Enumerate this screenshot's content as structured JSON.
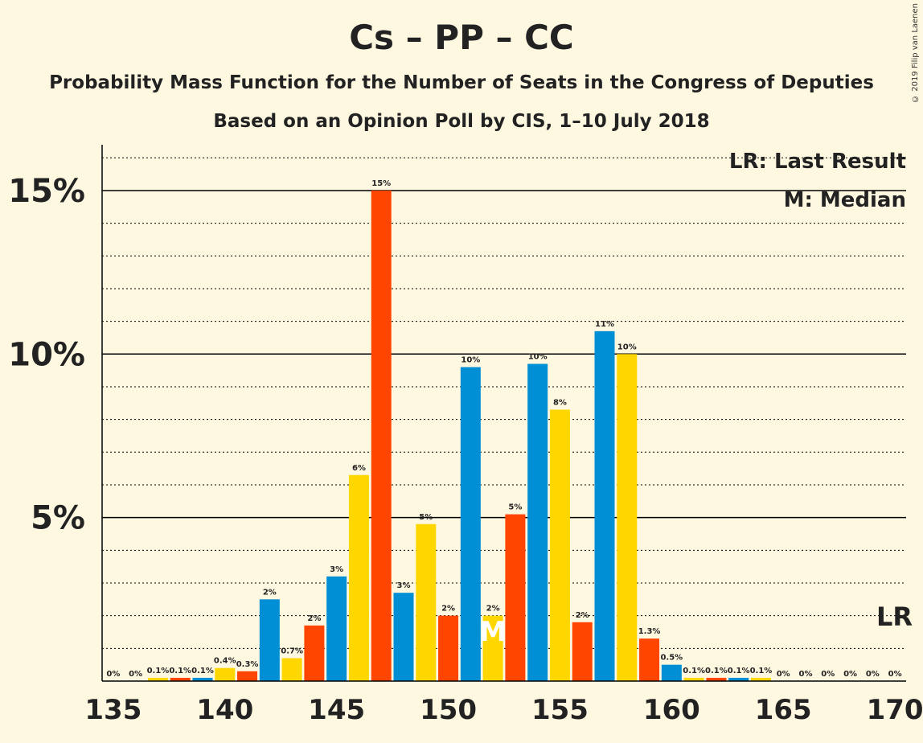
{
  "title": "Cs – PP – CC",
  "subtitle": "Probability Mass Function for the Number of Seats in the Congress of Deputies",
  "subtitle2": "Based on an Opinion Poll by CIS, 1–10 July 2018",
  "copyright": "© 2019 Filip van Laenen",
  "legend": {
    "last_result": "LR: Last Result",
    "median": "M: Median"
  },
  "colors": {
    "background": "#FFF8E1",
    "cs": "#008FD5",
    "pp": "#FFD700",
    "cc": "#FF4500"
  },
  "chart_data": {
    "type": "bar",
    "x": [
      135,
      136,
      137,
      138,
      139,
      140,
      141,
      142,
      143,
      144,
      145,
      146,
      147,
      148,
      149,
      150,
      151,
      152,
      153,
      154,
      155,
      156,
      157,
      158,
      159,
      160,
      161,
      162,
      163,
      164,
      165,
      166,
      167,
      168,
      169,
      170
    ],
    "values": [
      0,
      0,
      0.1,
      0.1,
      0.1,
      0.4,
      0.3,
      2.5,
      0.7,
      1.7,
      3.2,
      6.3,
      15.0,
      2.7,
      4.8,
      2.0,
      9.6,
      2.0,
      5.1,
      9.7,
      8.3,
      1.8,
      10.7,
      10.0,
      1.3,
      0.5,
      0.1,
      0.1,
      0.1,
      0.1,
      0,
      0,
      0,
      0,
      0,
      0
    ],
    "labels": [
      "0%",
      "0%",
      "0.1%",
      "0.1%",
      "0.1%",
      "0.4%",
      "0.3%",
      "2%",
      "0.7%",
      "2%",
      "3%",
      "6%",
      "15%",
      "3%",
      "5%",
      "2%",
      "10%",
      "2%",
      "5%",
      "10%",
      "8%",
      "2%",
      "11%",
      "10%",
      "1.3%",
      "0.5%",
      "0.1%",
      "0.1%",
      "0.1%",
      "0.1%",
      "0%",
      "0%",
      "0%",
      "0%",
      "0%",
      "0%"
    ],
    "bar_colors": [
      "cs",
      "pp",
      "pp",
      "cc",
      "cs",
      "pp",
      "cc",
      "cs",
      "pp",
      "cc",
      "cs",
      "pp",
      "cc",
      "cs",
      "pp",
      "cc",
      "cs",
      "pp",
      "cc",
      "cs",
      "pp",
      "cc",
      "cs",
      "pp",
      "cc",
      "cs",
      "pp",
      "cc",
      "cs",
      "pp",
      "cc",
      "cs",
      "pp",
      "cc",
      "cs",
      "pp"
    ],
    "x_ticks": [
      135,
      140,
      145,
      150,
      155,
      160,
      165,
      170
    ],
    "y_ticks": [
      5,
      10,
      15
    ],
    "y_tick_labels": [
      "5%",
      "10%",
      "15%"
    ],
    "ylim": [
      0,
      16.4
    ],
    "xlim": [
      134.5,
      170.5
    ],
    "median": 152,
    "median_marker": "M",
    "last_result": 170,
    "last_result_marker": "LR",
    "grid": "dotted lines every 1%, solid every 5%"
  }
}
